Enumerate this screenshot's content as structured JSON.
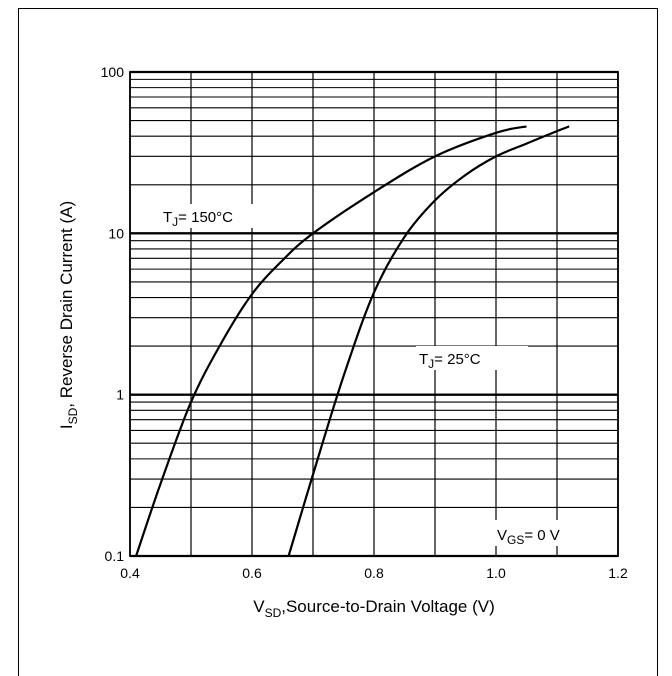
{
  "chart_data": {
    "type": "line",
    "xlabel_main": "V",
    "xlabel_sub": "SD",
    "xlabel_rest": ",Source-to-Drain Voltage (V)",
    "ylabel_main": "I",
    "ylabel_sub": "SD",
    "ylabel_rest": ", Reverse Drain Current (A)",
    "xlim": [
      0.4,
      1.2
    ],
    "ylim": [
      0.1,
      100
    ],
    "yscale": "log",
    "grid": true,
    "x_ticks": [
      "0.4",
      "0.6",
      "0.8",
      "1.0",
      "1.2"
    ],
    "y_ticks": [
      "0.1",
      "1",
      "10",
      "100"
    ],
    "series": [
      {
        "name": "150°C",
        "x": [
          0.41,
          0.45,
          0.5,
          0.55,
          0.6,
          0.65,
          0.7,
          0.8,
          0.9,
          1.0,
          1.05
        ],
        "y": [
          0.1,
          0.28,
          0.9,
          2.1,
          4.2,
          6.8,
          10,
          18,
          30,
          42,
          46
        ]
      },
      {
        "name": "25°C",
        "x": [
          0.66,
          0.7,
          0.75,
          0.8,
          0.85,
          0.9,
          0.95,
          1.0,
          1.05,
          1.1,
          1.12
        ],
        "y": [
          0.1,
          0.32,
          1.3,
          4.3,
          9.5,
          16,
          23,
          30,
          36,
          43,
          46
        ]
      }
    ],
    "annotations": {
      "tj150": {
        "main": "T",
        "sub": "J",
        "rest": "= 150°C"
      },
      "tj25": {
        "main": "T",
        "sub": "J",
        "rest": "= 25°C"
      },
      "vgs": {
        "main": "V",
        "sub": "GS",
        "rest": "= 0 V"
      }
    }
  }
}
